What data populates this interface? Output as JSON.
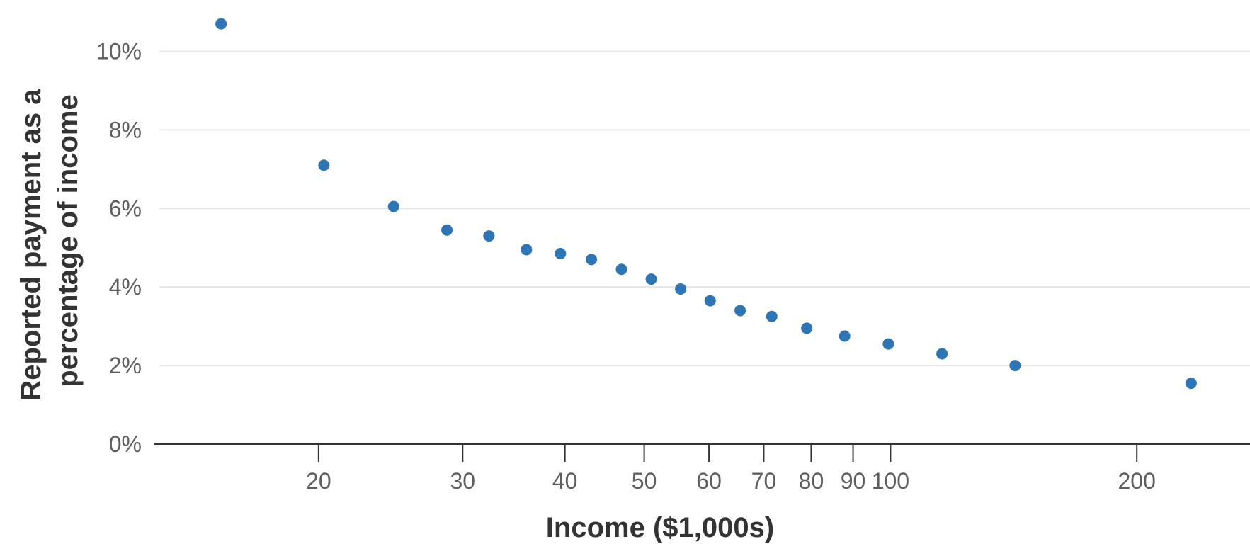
{
  "chart_data": {
    "type": "scatter",
    "title": "",
    "xlabel": "Income ($1,000s)",
    "ylabel_lines": [
      "Reported payment as a",
      "percentage of income"
    ],
    "x_scale": "log",
    "xlim": [
      12.6,
      275
    ],
    "ylim": [
      0,
      11
    ],
    "x_ticks": [
      20,
      30,
      40,
      50,
      60,
      70,
      80,
      90,
      100,
      200
    ],
    "x_tick_labels": [
      "20",
      "30",
      "40",
      "50",
      "60",
      "70",
      "80",
      "90",
      "100",
      "200"
    ],
    "y_ticks": [
      0,
      2,
      4,
      6,
      8,
      10
    ],
    "y_tick_labels": [
      "0%",
      "2%",
      "4%",
      "6%",
      "8%",
      "10%"
    ],
    "grid": "horizontal",
    "colors": {
      "point": "#2e75b6",
      "grid": "#e6e6e6",
      "baseline": "#333333",
      "tick_text": "#5e5e5e",
      "axis_title": "#333333"
    },
    "series": [
      {
        "points": [
          {
            "x": 15.2,
            "y": 10.7
          },
          {
            "x": 20.3,
            "y": 7.1
          },
          {
            "x": 24.7,
            "y": 6.05
          },
          {
            "x": 28.7,
            "y": 5.45
          },
          {
            "x": 32.3,
            "y": 5.3
          },
          {
            "x": 35.9,
            "y": 4.95
          },
          {
            "x": 39.5,
            "y": 4.85
          },
          {
            "x": 43.1,
            "y": 4.7
          },
          {
            "x": 46.9,
            "y": 4.45
          },
          {
            "x": 51.0,
            "y": 4.2
          },
          {
            "x": 55.4,
            "y": 3.95
          },
          {
            "x": 60.2,
            "y": 3.65
          },
          {
            "x": 65.5,
            "y": 3.4
          },
          {
            "x": 71.6,
            "y": 3.25
          },
          {
            "x": 79.0,
            "y": 2.95
          },
          {
            "x": 87.9,
            "y": 2.75
          },
          {
            "x": 99.4,
            "y": 2.55
          },
          {
            "x": 115.6,
            "y": 2.3
          },
          {
            "x": 142.0,
            "y": 2.0
          },
          {
            "x": 233.0,
            "y": 1.55
          }
        ]
      }
    ]
  }
}
